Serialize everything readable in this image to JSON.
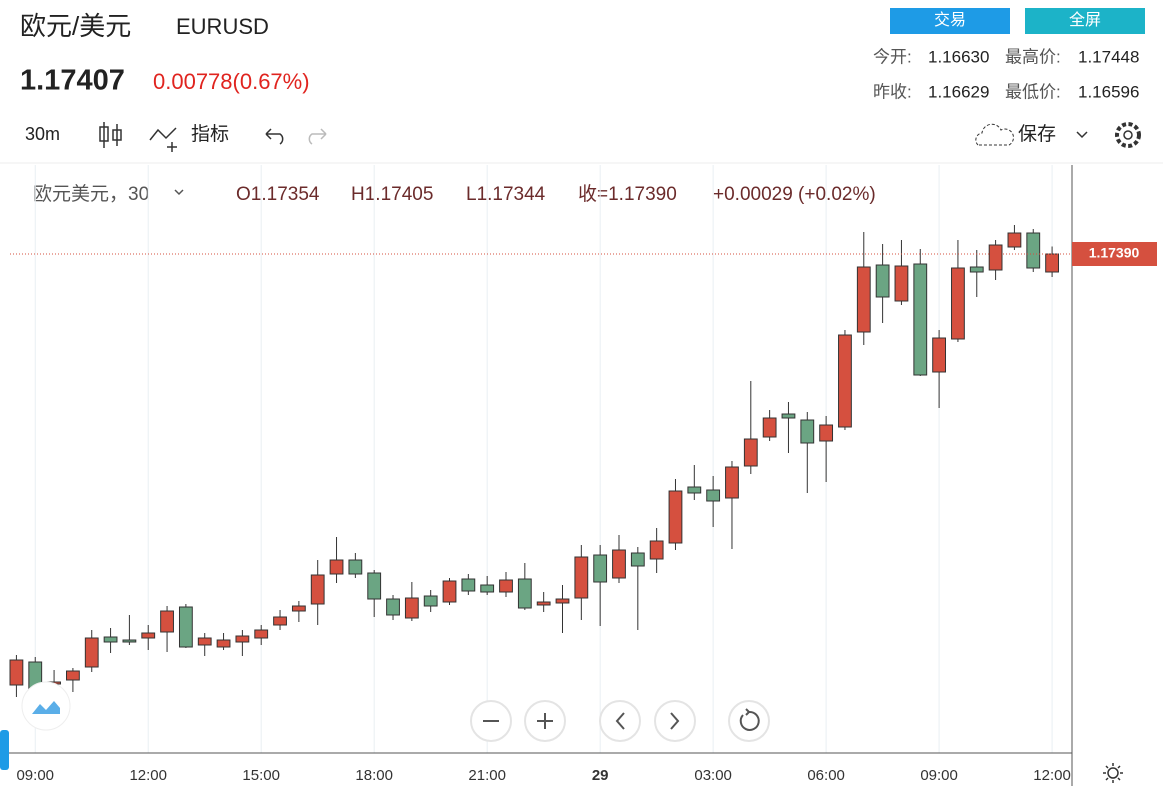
{
  "header": {
    "name": "欧元/美元",
    "symbol": "EURUSD",
    "price": "1.17407",
    "change": "0.00778(0.67%)",
    "trade_button": "交易",
    "fullscreen_button": "全屏",
    "open_label": "今开:",
    "open_value": "1.16630",
    "high_label": "最高价:",
    "high_value": "1.17448",
    "prev_close_label": "昨收:",
    "prev_close_value": "1.16629",
    "low_label": "最低价:",
    "low_value": "1.16596"
  },
  "toolbar": {
    "interval": "30m",
    "indicators": "指标",
    "save": "保存"
  },
  "legend": {
    "name": "欧元美元，30",
    "open": "O1.17354",
    "high": "H1.17405",
    "low": "L1.17344",
    "close": "收=1.17390",
    "change": "+0.00029 (+0.02%)"
  },
  "chart_data": {
    "type": "candlestick",
    "up_color": "#d5503f",
    "down_color": "#6ba583",
    "categories": [
      null,
      "09:00",
      null,
      null,
      null,
      null,
      null,
      "12:00",
      null,
      null,
      null,
      null,
      null,
      "15:00",
      null,
      null,
      null,
      null,
      null,
      "18:00",
      null,
      null,
      null,
      null,
      null,
      "21:00",
      null,
      null,
      null,
      null,
      null,
      "29",
      null,
      null,
      null,
      null,
      null,
      "03:00",
      null,
      null,
      null,
      null,
      null,
      "06:00",
      null,
      null,
      null,
      null,
      null,
      "09:00",
      null,
      null,
      null,
      null,
      null,
      "12:00"
    ],
    "open": [
      1.16528,
      1.16574,
      1.1653,
      1.16538,
      1.16564,
      1.16624,
      1.16618,
      1.16622,
      1.16634,
      1.16684,
      1.16608,
      1.16604,
      1.16614,
      1.16622,
      1.16648,
      1.16676,
      1.1669,
      1.1675,
      1.16778,
      1.16752,
      1.167,
      1.16662,
      1.16706,
      1.16694,
      1.1674,
      1.16728,
      1.16714,
      1.1674,
      1.16688,
      1.16692,
      1.16702,
      1.16788,
      1.16742,
      1.16792,
      1.1678,
      1.16812,
      1.16924,
      1.16918,
      1.16902,
      1.16966,
      1.17024,
      1.1707,
      1.17058,
      1.17016,
      1.17044,
      1.17234,
      1.17368,
      1.17296,
      1.1737,
      1.17154,
      1.1722,
      1.17364,
      1.17358,
      1.17404,
      1.17432,
      1.17354
    ],
    "high": [
      1.16588,
      1.16584,
      1.16558,
      1.16562,
      1.16638,
      1.16642,
      1.16668,
      1.16648,
      1.16686,
      1.1669,
      1.16632,
      1.16632,
      1.16638,
      1.16648,
      1.16678,
      1.16696,
      1.16778,
      1.16824,
      1.16792,
      1.16758,
      1.16708,
      1.16734,
      1.16718,
      1.16742,
      1.1675,
      1.16746,
      1.16754,
      1.16772,
      1.16714,
      1.16728,
      1.16808,
      1.16808,
      1.16828,
      1.16804,
      1.16842,
      1.1694,
      1.16968,
      1.16946,
      1.16976,
      1.17136,
      1.17078,
      1.17094,
      1.17074,
      1.17066,
      1.17238,
      1.17434,
      1.1741,
      1.17418,
      1.174,
      1.17238,
      1.17418,
      1.17398,
      1.17418,
      1.17448,
      1.1744,
      1.17405
    ],
    "low": [
      1.16504,
      1.16504,
      1.16518,
      1.16514,
      1.16554,
      1.16592,
      1.16608,
      1.16598,
      1.16594,
      1.16602,
      1.16586,
      1.16598,
      1.16586,
      1.16608,
      1.16638,
      1.16654,
      1.16648,
      1.16732,
      1.16742,
      1.16664,
      1.16658,
      1.16656,
      1.16674,
      1.16688,
      1.16708,
      1.16708,
      1.16704,
      1.16678,
      1.16674,
      1.16632,
      1.16658,
      1.16646,
      1.16732,
      1.16638,
      1.16752,
      1.16798,
      1.16898,
      1.16844,
      1.168,
      1.1695,
      1.17016,
      1.16992,
      1.16912,
      1.16934,
      1.17038,
      1.17208,
      1.17252,
      1.17288,
      1.17146,
      1.17082,
      1.17214,
      1.17304,
      1.17338,
      1.17398,
      1.17354,
      1.17344
    ],
    "close": [
      1.16578,
      1.16518,
      1.16534,
      1.16556,
      1.16622,
      1.16614,
      1.16614,
      1.16632,
      1.16676,
      1.16604,
      1.16622,
      1.16618,
      1.16626,
      1.16638,
      1.16664,
      1.16686,
      1.16748,
      1.16778,
      1.1675,
      1.167,
      1.16668,
      1.16702,
      1.16686,
      1.16736,
      1.16716,
      1.16714,
      1.16738,
      1.16682,
      1.16694,
      1.167,
      1.16784,
      1.16734,
      1.16798,
      1.16766,
      1.16816,
      1.16916,
      1.16912,
      1.16896,
      1.16964,
      1.1702,
      1.17062,
      1.17062,
      1.17012,
      1.17048,
      1.17228,
      1.17364,
      1.17304,
      1.17366,
      1.17148,
      1.17222,
      1.17362,
      1.17354,
      1.17408,
      1.17432,
      1.17362,
      1.1739
    ],
    "ylim": [
      1.16392,
      1.17568
    ],
    "last_price": {
      "value": 1.1739,
      "label": "1.17390"
    }
  }
}
